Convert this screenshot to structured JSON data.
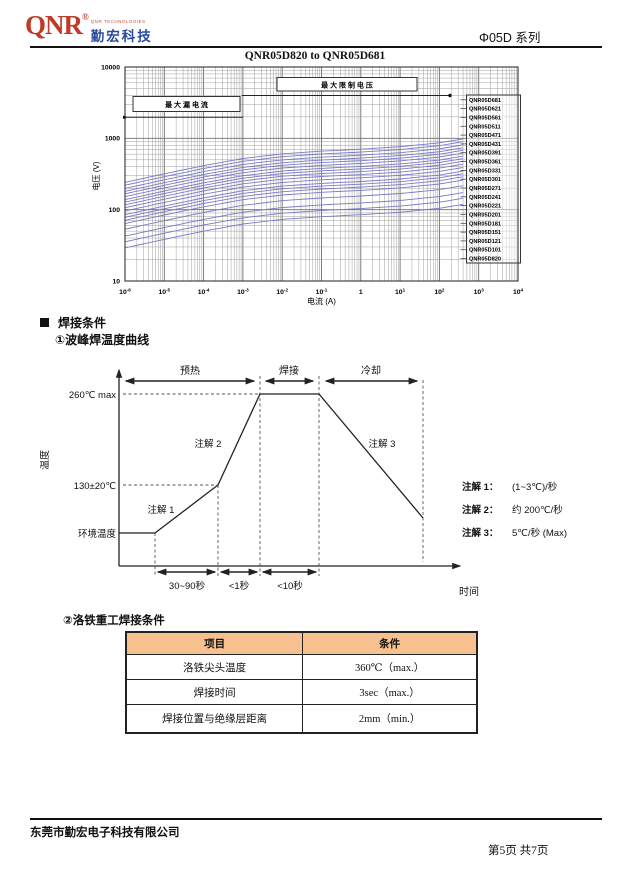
{
  "header": {
    "logo_text": "QNR",
    "logo_reg": "®",
    "logo_tagline": "QNR TECHNOLOGIES",
    "logo_cn": "勤宏科技",
    "series": "Φ05D 系列"
  },
  "chart_data": {
    "type": "line",
    "title": "QNR05D820 to QNR05D681",
    "xlabel": "电流 (A)",
    "ylabel": "电压 (V)",
    "x_scale": "log",
    "y_scale": "log",
    "xlim": [
      1e-06,
      10000.0
    ],
    "ylim": [
      10,
      10000
    ],
    "grid": true,
    "legend_position": "right-inside",
    "x_ticks": [
      {
        "u": -6,
        "base": "10",
        "exp": "-6"
      },
      {
        "u": -5,
        "base": "10",
        "exp": "-5"
      },
      {
        "u": -4,
        "base": "10",
        "exp": "-4"
      },
      {
        "u": -3,
        "base": "10",
        "exp": "-3"
      },
      {
        "u": -2,
        "base": "10",
        "exp": "-2"
      },
      {
        "u": -1,
        "base": "10",
        "exp": "-1"
      },
      {
        "u": 0,
        "base": "1",
        "exp": ""
      },
      {
        "u": 1,
        "base": "10",
        "exp": "1"
      },
      {
        "u": 2,
        "base": "10",
        "exp": "2"
      },
      {
        "u": 3,
        "base": "10",
        "exp": "3"
      },
      {
        "u": 4,
        "base": "10",
        "exp": "4"
      }
    ],
    "y_ticks": [
      {
        "v": 4,
        "label": "10000"
      },
      {
        "v": 3,
        "label": "1000"
      },
      {
        "v": 2,
        "label": "100"
      },
      {
        "v": 1,
        "label": "10"
      }
    ],
    "series": [
      {
        "name": "QNR05D681",
        "v_1mA": 680
      },
      {
        "name": "QNR05D621",
        "v_1mA": 620
      },
      {
        "name": "QNR05D561",
        "v_1mA": 560
      },
      {
        "name": "QNR05D511",
        "v_1mA": 510
      },
      {
        "name": "QNR05D471",
        "v_1mA": 470
      },
      {
        "name": "QNR05D431",
        "v_1mA": 430
      },
      {
        "name": "QNR05D391",
        "v_1mA": 390
      },
      {
        "name": "QNR05D361",
        "v_1mA": 360
      },
      {
        "name": "QNR05D331",
        "v_1mA": 330
      },
      {
        "name": "QNR05D301",
        "v_1mA": 300
      },
      {
        "name": "QNR05D271",
        "v_1mA": 270
      },
      {
        "name": "QNR05D241",
        "v_1mA": 240
      },
      {
        "name": "QNR05D221",
        "v_1mA": 220
      },
      {
        "name": "QNR05D201",
        "v_1mA": 200
      },
      {
        "name": "QNR05D181",
        "v_1mA": 180
      },
      {
        "name": "QNR05D151",
        "v_1mA": 150
      },
      {
        "name": "QNR05D121",
        "v_1mA": 120
      },
      {
        "name": "QNR05D101",
        "v_1mA": 100
      },
      {
        "name": "QNR05D820",
        "v_1mA": 82
      }
    ],
    "curve_log10_ratio_points": [
      [
        -6,
        -0.45
      ],
      [
        -5,
        -0.33
      ],
      [
        -4,
        -0.215
      ],
      [
        -3,
        -0.115
      ],
      [
        -2,
        -0.05
      ],
      [
        -1,
        -0.012
      ],
      [
        0,
        0.015
      ],
      [
        1,
        0.05
      ],
      [
        2,
        0.105
      ],
      [
        2.6,
        0.16
      ]
    ],
    "annotations": [
      {
        "id": "max-limit-voltage",
        "text": "最 大 限 制 电 压"
      },
      {
        "id": "max-leakage-current",
        "text": "最 大 漏 电 流"
      }
    ],
    "colors": {
      "curve": "#7b7bc8",
      "grid_minor": "#949494",
      "grid_major": "#6f6f6f",
      "axis": "#333333"
    }
  },
  "solder": {
    "section_title": "焊接条件",
    "subtitle": "①波峰焊温度曲线",
    "y_axis_label": "温度",
    "x_axis_label": "时间",
    "phases": [
      "预热",
      "焊接",
      "冷却"
    ],
    "level_peak": "260℃ max",
    "level_mid": "130±20℃",
    "level_ambient": "环境温度",
    "curve_note_1": "注解 1",
    "curve_note_2": "注解 2",
    "curve_note_3": "注解 3",
    "durations": [
      "30~90秒",
      "<1秒",
      "<10秒"
    ],
    "notes": [
      {
        "label": "注解 1：",
        "value": "(1~3℃)/秒"
      },
      {
        "label": "注解 2：",
        "value": "约 200℃/秒"
      },
      {
        "label": "注解 3：",
        "value": "5℃/秒 (Max)"
      }
    ]
  },
  "solder_table": {
    "heading": "②洛铁重工焊接条件",
    "columns": [
      "项目",
      "条件"
    ],
    "rows": [
      [
        "洛铁尖头温度",
        "360℃（max.）"
      ],
      [
        "焊接时间",
        "3sec（max.）"
      ],
      [
        "焊接位置与绝缘层距离",
        "2mm（min.）"
      ]
    ]
  },
  "footer": {
    "company": "东莞市勤宏电子科技有限公司",
    "page": "第5页 共7页"
  }
}
